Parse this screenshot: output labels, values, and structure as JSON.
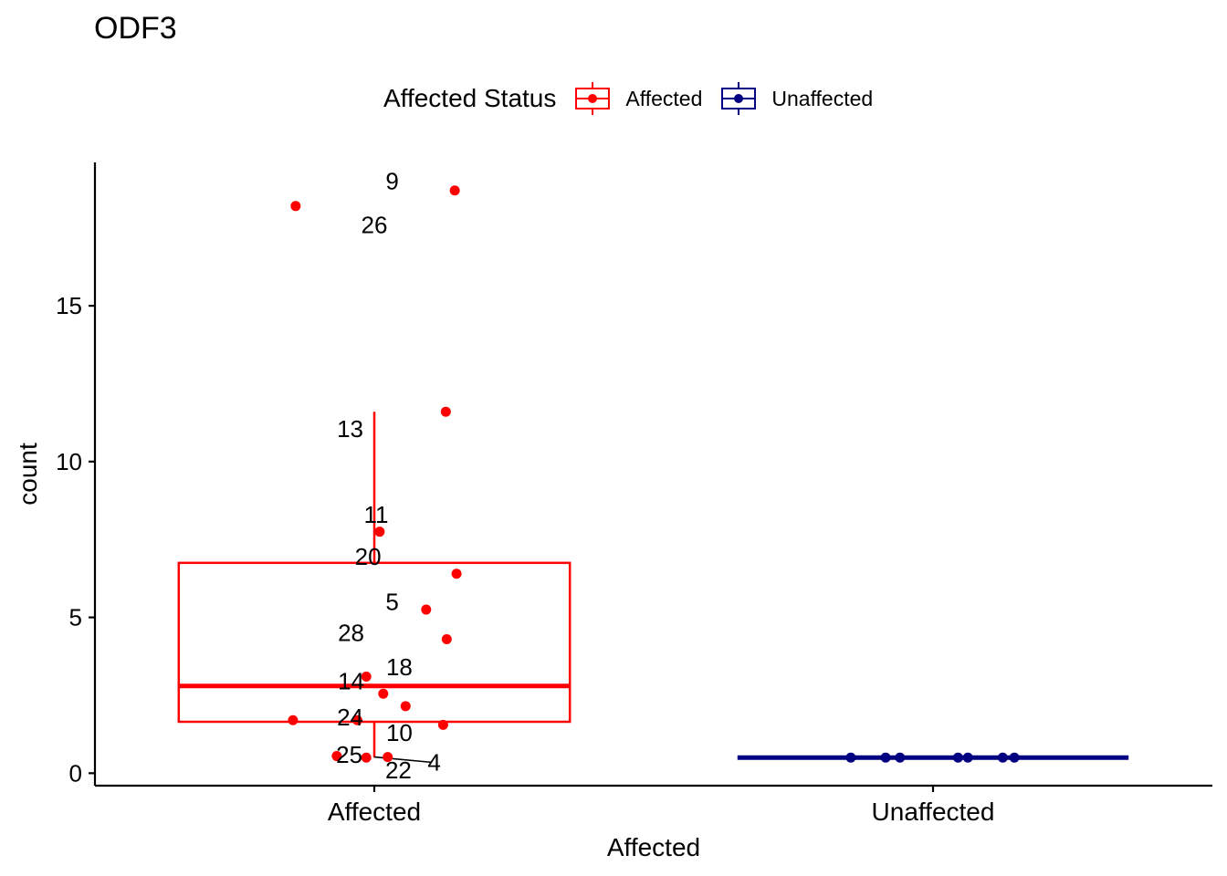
{
  "chart_data": {
    "type": "box",
    "title": "ODF3",
    "xlabel": "Affected",
    "ylabel": "count",
    "ylim": [
      -0.4,
      19.6
    ],
    "yticks": [
      0,
      5,
      10,
      15
    ],
    "categories": [
      "Affected",
      "Unaffected"
    ],
    "legend": {
      "title": "Affected Status",
      "position": "top",
      "entries": [
        {
          "label": "Affected",
          "color": "#ff0000"
        },
        {
          "label": "Unaffected",
          "color": "#000080"
        }
      ]
    },
    "boxes": [
      {
        "category": "Affected",
        "color": "#ff0000",
        "q1": 1.65,
        "median": 2.8,
        "q3": 6.75,
        "whisker_low": 0.5,
        "whisker_high": 11.6
      },
      {
        "category": "Unaffected",
        "color": "#000080",
        "q1": 0.5,
        "median": 0.5,
        "q3": 0.5,
        "whisker_low": 0.5,
        "whisker_high": 0.5
      }
    ],
    "points": [
      {
        "category": "Affected",
        "jitter": -0.88,
        "y": 18.2
      },
      {
        "category": "Affected",
        "jitter": 0.9,
        "y": 18.7
      },
      {
        "category": "Affected",
        "jitter": 0.8,
        "y": 11.6
      },
      {
        "category": "Affected",
        "jitter": 0.06,
        "y": 7.75
      },
      {
        "category": "Affected",
        "jitter": 0.92,
        "y": 6.4
      },
      {
        "category": "Affected",
        "jitter": 0.58,
        "y": 5.25
      },
      {
        "category": "Affected",
        "jitter": 0.81,
        "y": 4.3
      },
      {
        "category": "Affected",
        "jitter": -0.09,
        "y": 3.1
      },
      {
        "category": "Affected",
        "jitter": 0.1,
        "y": 2.55
      },
      {
        "category": "Affected",
        "jitter": 0.35,
        "y": 2.15
      },
      {
        "category": "Affected",
        "jitter": -0.91,
        "y": 1.7
      },
      {
        "category": "Affected",
        "jitter": -0.19,
        "y": 1.7
      },
      {
        "category": "Affected",
        "jitter": 0.77,
        "y": 1.55
      },
      {
        "category": "Affected",
        "jitter": -0.42,
        "y": 0.55
      },
      {
        "category": "Affected",
        "jitter": -0.09,
        "y": 0.5
      },
      {
        "category": "Affected",
        "jitter": 0.15,
        "y": 0.52
      },
      {
        "category": "Unaffected",
        "jitter": -0.92,
        "y": 0.5
      },
      {
        "category": "Unaffected",
        "jitter": -0.53,
        "y": 0.5
      },
      {
        "category": "Unaffected",
        "jitter": -0.37,
        "y": 0.5
      },
      {
        "category": "Unaffected",
        "jitter": 0.28,
        "y": 0.5
      },
      {
        "category": "Unaffected",
        "jitter": 0.39,
        "y": 0.5
      },
      {
        "category": "Unaffected",
        "jitter": 0.78,
        "y": 0.5
      },
      {
        "category": "Unaffected",
        "jitter": 0.91,
        "y": 0.5
      }
    ],
    "point_labels": [
      {
        "text": "9",
        "category": "Affected",
        "offset": 0.2,
        "y": 19.0
      },
      {
        "text": "26",
        "category": "Affected",
        "offset": 0.0,
        "y": 17.6
      },
      {
        "text": "13",
        "category": "Affected",
        "offset": -0.27,
        "y": 11.05
      },
      {
        "text": "11",
        "category": "Affected",
        "offset": 0.02,
        "y": 8.3
      },
      {
        "text": "20",
        "category": "Affected",
        "offset": -0.07,
        "y": 6.95
      },
      {
        "text": "5",
        "category": "Affected",
        "offset": 0.2,
        "y": 5.5
      },
      {
        "text": "28",
        "category": "Affected",
        "offset": -0.26,
        "y": 4.5
      },
      {
        "text": "18",
        "category": "Affected",
        "offset": 0.28,
        "y": 3.4
      },
      {
        "text": "14",
        "category": "Affected",
        "offset": -0.26,
        "y": 2.95
      },
      {
        "text": "24",
        "category": "Affected",
        "offset": -0.27,
        "y": 1.8
      },
      {
        "text": "10",
        "category": "Affected",
        "offset": 0.28,
        "y": 1.3
      },
      {
        "text": "25",
        "category": "Affected",
        "offset": -0.28,
        "y": 0.6
      },
      {
        "text": "4",
        "category": "Affected",
        "offset": 0.67,
        "y": 0.35
      },
      {
        "text": "22",
        "category": "Affected",
        "offset": 0.27,
        "y": 0.1
      }
    ]
  }
}
